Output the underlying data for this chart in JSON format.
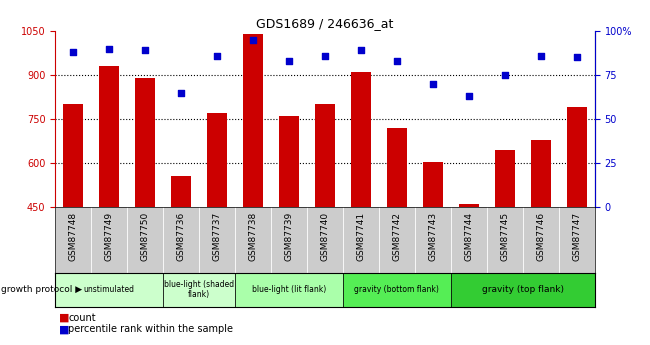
{
  "title": "GDS1689 / 246636_at",
  "samples": [
    "GSM87748",
    "GSM87749",
    "GSM87750",
    "GSM87736",
    "GSM87737",
    "GSM87738",
    "GSM87739",
    "GSM87740",
    "GSM87741",
    "GSM87742",
    "GSM87743",
    "GSM87744",
    "GSM87745",
    "GSM87746",
    "GSM87747"
  ],
  "counts": [
    800,
    930,
    890,
    555,
    770,
    1040,
    760,
    800,
    910,
    720,
    605,
    460,
    645,
    680,
    790
  ],
  "percentile": [
    88,
    90,
    89,
    65,
    86,
    95,
    83,
    86,
    89,
    83,
    70,
    63,
    75,
    86,
    85
  ],
  "ymin": 450,
  "ymax": 1050,
  "yticks": [
    450,
    600,
    750,
    900,
    1050
  ],
  "y2ticks_vals": [
    0,
    25,
    50,
    75,
    100
  ],
  "y2ticks_labels": [
    "0",
    "25",
    "50",
    "75",
    "100%"
  ],
  "bar_color": "#cc0000",
  "dot_color": "#0000cc",
  "groups": [
    {
      "label": "unstimulated",
      "start": 0,
      "end": 3,
      "color": "#ccffcc"
    },
    {
      "label": "blue-light (shaded\nflank)",
      "start": 3,
      "end": 5,
      "color": "#ccffcc"
    },
    {
      "label": "blue-light (lit flank)",
      "start": 5,
      "end": 8,
      "color": "#aaffaa"
    },
    {
      "label": "gravity (bottom flank)",
      "start": 8,
      "end": 11,
      "color": "#55ee55"
    },
    {
      "label": "gravity (top flank)",
      "start": 11,
      "end": 15,
      "color": "#33cc33"
    }
  ],
  "growth_protocol_label": "growth protocol",
  "legend_count_label": "count",
  "legend_percentile_label": "percentile rank within the sample",
  "bar_width": 0.55,
  "tick_bg_color": "#cccccc",
  "title_fontsize": 9,
  "axis_label_fontsize": 7,
  "tick_label_fontsize": 6.5,
  "group_label_fontsize": 6.5,
  "legend_fontsize": 7
}
